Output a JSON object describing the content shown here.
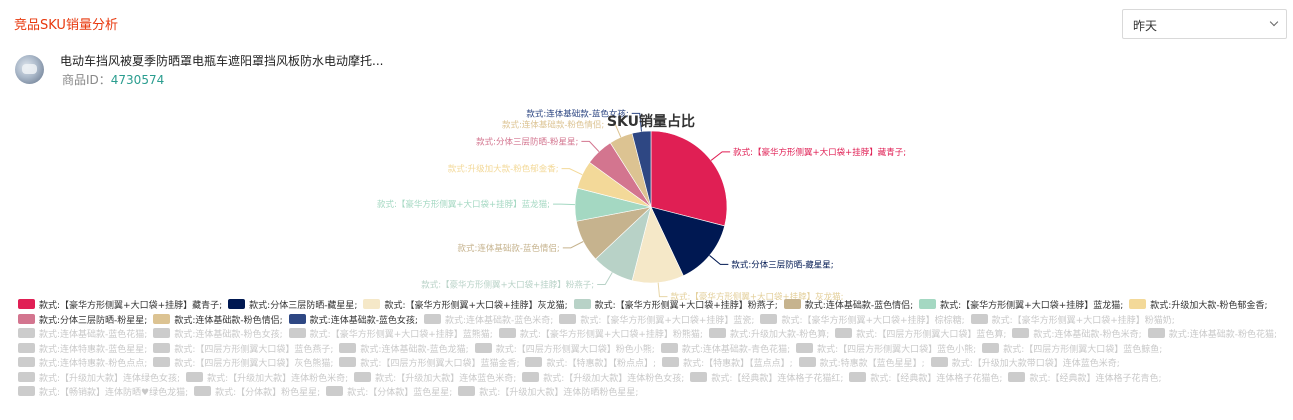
{
  "header": {
    "title": "竞品SKU销量分析"
  },
  "date_select": {
    "value": "昨天"
  },
  "product": {
    "name": "电动车挡风被夏季防晒罩电瓶车遮阳罩挡风板防水电动摩托...",
    "id_label": "商品ID：",
    "id_value": "4730574"
  },
  "chart_data": {
    "type": "pie",
    "title": "SKU销量占比",
    "series": [
      {
        "name": "款式:【豪华方形侧翼+大口袋+挂脖】藏青子;",
        "value": 29,
        "color": "#e01f54"
      },
      {
        "name": "款式:分体三层防晒-藏星星;",
        "value": 14,
        "color": "#001852"
      },
      {
        "name": "款式:【豪华方形侧翼+大口袋+挂脖】灰龙猫;",
        "value": 11,
        "color": "#f5e8c8"
      },
      {
        "name": "款式:【豪华方形侧翼+大口袋+挂脖】粉燕子;",
        "value": 9,
        "color": "#b8d2c7"
      },
      {
        "name": "款式:连体基础款-蓝色情侣;",
        "value": 9,
        "color": "#c6b38e"
      },
      {
        "name": "款式:【豪华方形侧翼+大口袋+挂脖】蓝龙猫;",
        "value": 7,
        "color": "#a4d8c2"
      },
      {
        "name": "款式:升级加大款-粉色郁金香;",
        "value": 6,
        "color": "#f3d999"
      },
      {
        "name": "款式:分体三层防晒-粉星星;",
        "value": 6,
        "color": "#d3758f"
      },
      {
        "name": "款式:连体基础款-粉色情侣;",
        "value": 5,
        "color": "#dcc392"
      },
      {
        "name": "款式:连体基础款-蓝色女孩;",
        "value": 4,
        "color": "#2e4783"
      }
    ],
    "legend_inactive": [
      "款式:连体基础款-蓝色米奇;",
      "款式:【豪华方形侧翼+大口袋+挂脖】蓝瓷;",
      "款式:【豪华方形侧翼+大口袋+挂脖】棕棕糖;",
      "款式:【豪华方形侧翼+大口袋+挂脖】粉猫奶;",
      "款式:连体基础款-蓝色花猫;",
      "款式:连体基础款-粉色女孩;",
      "款式:【豪华方形侧翼+大口袋+挂脖】蓝熊猫;",
      "款式:【豪华方形侧翼+大口袋+挂脖】粉熊猫;",
      "款式:升级加大款-粉色算;",
      "款式:【四层方形侧翼大口袋】蓝色算;",
      "款式:连体基础款-粉色米奇;",
      "款式:连体基础款-粉色花猫;",
      "款式:连体特惠款-蓝色星星;",
      "款式:【四层方形侧翼大口袋】蓝色燕子;",
      "款式:连体基础款-蓝色龙猫;",
      "款式:【四层方形侧翼大口袋】粉色小熊;",
      "款式:连体基础款-青色花猫;",
      "款式:【四层方形侧翼大口袋】蓝色小熊;",
      "款式:【四层方形侧翼大口袋】蓝色鲸鱼;",
      "款式:连体特惠款-粉色点点;",
      "款式:【四层方形侧翼大口袋】灰色熊猫;",
      "款式:【四层方形侧翼大口袋】蓝猫金香;",
      "款式:【特惠款】【粉点点】;",
      "款式:【特惠款】【蓝点点】;",
      "款式:特惠款【蓝色星星】;",
      "款式:【升级加大款带口袋】连体蓝色米奇;",
      "款式:【升级加大款】连体绿色女孩;",
      "款式:【升级加大款】连体粉色米奇;",
      "款式:【升级加大款】连体蓝色米奇;",
      "款式:【升级加大款】连体粉色女孩;",
      "款式:【经典款】连体格子花猫红;",
      "款式:【经典款】连体格子花猫色;",
      "款式:【经典款】连体格子花青色;",
      "款式:【畅销款】连体防晒♥绿色龙猫;",
      "款式:【分体款】粉色星星;",
      "款式:【分体款】蓝色星星;",
      "款式:【升级加大款】连体防晒粉色星星;"
    ]
  }
}
